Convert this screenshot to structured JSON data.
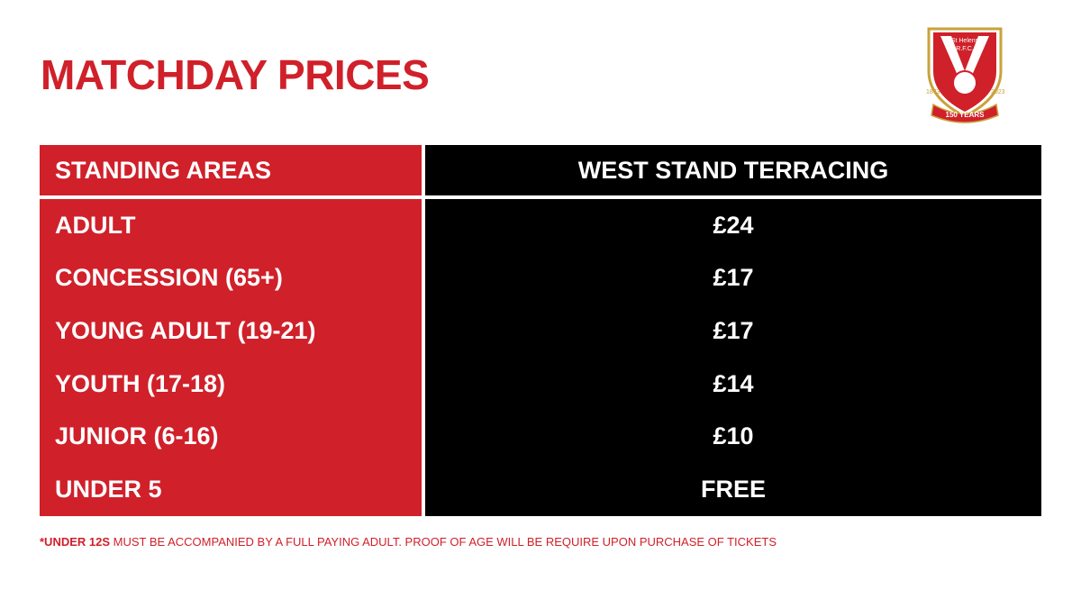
{
  "header": {
    "title": "MATCHDAY PRICES"
  },
  "logo": {
    "name_line1": "St Helens",
    "name_line2": "R.F.C.",
    "year_left": "1873",
    "year_right": "2023",
    "banner": "150 YEARS"
  },
  "table": {
    "columns": [
      "STANDING AREAS",
      "WEST STAND TERRACING"
    ],
    "rows": [
      [
        "ADULT",
        "£24"
      ],
      [
        "CONCESSION (65+)",
        "£17"
      ],
      [
        "YOUNG ADULT (19-21)",
        "£17"
      ],
      [
        "YOUTH (17-18)",
        "£14"
      ],
      [
        "JUNIOR (6-16)",
        "£10"
      ],
      [
        "UNDER 5",
        "FREE"
      ]
    ]
  },
  "footnote": {
    "emphasis": "*UNDER 12S",
    "text": "MUST BE ACCOMPANIED BY A FULL PAYING ADULT. PROOF OF AGE WILL BE REQUIRE UPON PURCHASE OF TICKETS"
  }
}
